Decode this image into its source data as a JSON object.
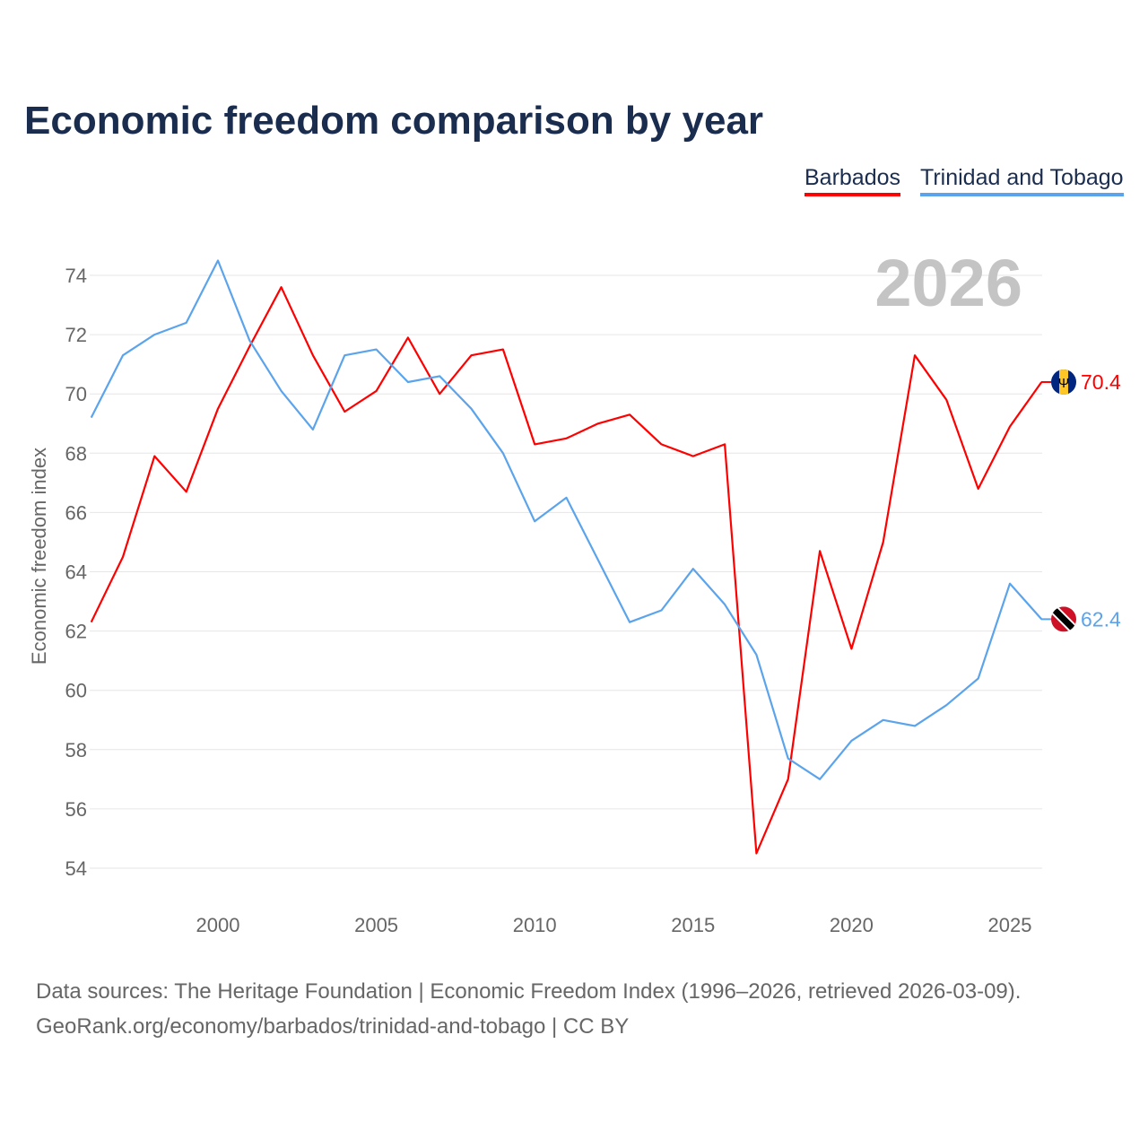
{
  "colors": {
    "barbados": "#ff0000",
    "trinidad": "#5ba4ec",
    "title": "#1b2d4f"
  },
  "footer": {
    "line1": "Data sources: The Heritage Foundation | Economic Freedom Index (1996–2026, retrieved 2026-03-09).",
    "line2": "GeoRank.org/economy/barbados/trinidad-and-tobago | CC BY"
  },
  "chart_data": {
    "type": "line",
    "title": "Economic freedom comparison by year",
    "ylabel": "Economic freedom index",
    "xlabel": "",
    "year_watermark": "2026",
    "legend": [
      "Barbados",
      "Trinidad and Tobago"
    ],
    "legend_position": "top-right",
    "ylim": [
      53,
      75
    ],
    "xlim": [
      1996,
      2026
    ],
    "yticks": [
      54,
      56,
      58,
      60,
      62,
      64,
      66,
      68,
      70,
      72,
      74
    ],
    "xticks": [
      2000,
      2005,
      2010,
      2015,
      2020,
      2025
    ],
    "grid": true,
    "x": [
      1996,
      1997,
      1998,
      1999,
      2000,
      2001,
      2002,
      2003,
      2004,
      2005,
      2006,
      2007,
      2008,
      2009,
      2010,
      2011,
      2012,
      2013,
      2014,
      2015,
      2016,
      2017,
      2018,
      2019,
      2020,
      2021,
      2022,
      2023,
      2024,
      2025,
      2026
    ],
    "series": [
      {
        "name": "Barbados",
        "flag": "barbados-flag",
        "end_label": "70.4",
        "values": [
          62.3,
          64.5,
          67.9,
          66.7,
          69.5,
          71.6,
          73.6,
          71.3,
          69.4,
          70.1,
          71.9,
          70.0,
          71.3,
          71.5,
          68.3,
          68.5,
          69.0,
          69.3,
          68.3,
          67.9,
          68.3,
          54.5,
          57.0,
          64.7,
          61.4,
          65.0,
          71.3,
          69.8,
          66.8,
          68.9,
          70.4
        ]
      },
      {
        "name": "Trinidad and Tobago",
        "flag": "trinidad-flag",
        "end_label": "62.4",
        "values": [
          69.2,
          71.3,
          72.0,
          72.4,
          74.5,
          71.8,
          70.1,
          68.8,
          71.3,
          71.5,
          70.4,
          70.6,
          69.5,
          68.0,
          65.7,
          66.5,
          64.4,
          62.3,
          62.7,
          64.1,
          62.9,
          61.2,
          57.7,
          57.0,
          58.3,
          59.0,
          58.8,
          59.5,
          60.4,
          63.6,
          62.4
        ]
      }
    ]
  }
}
